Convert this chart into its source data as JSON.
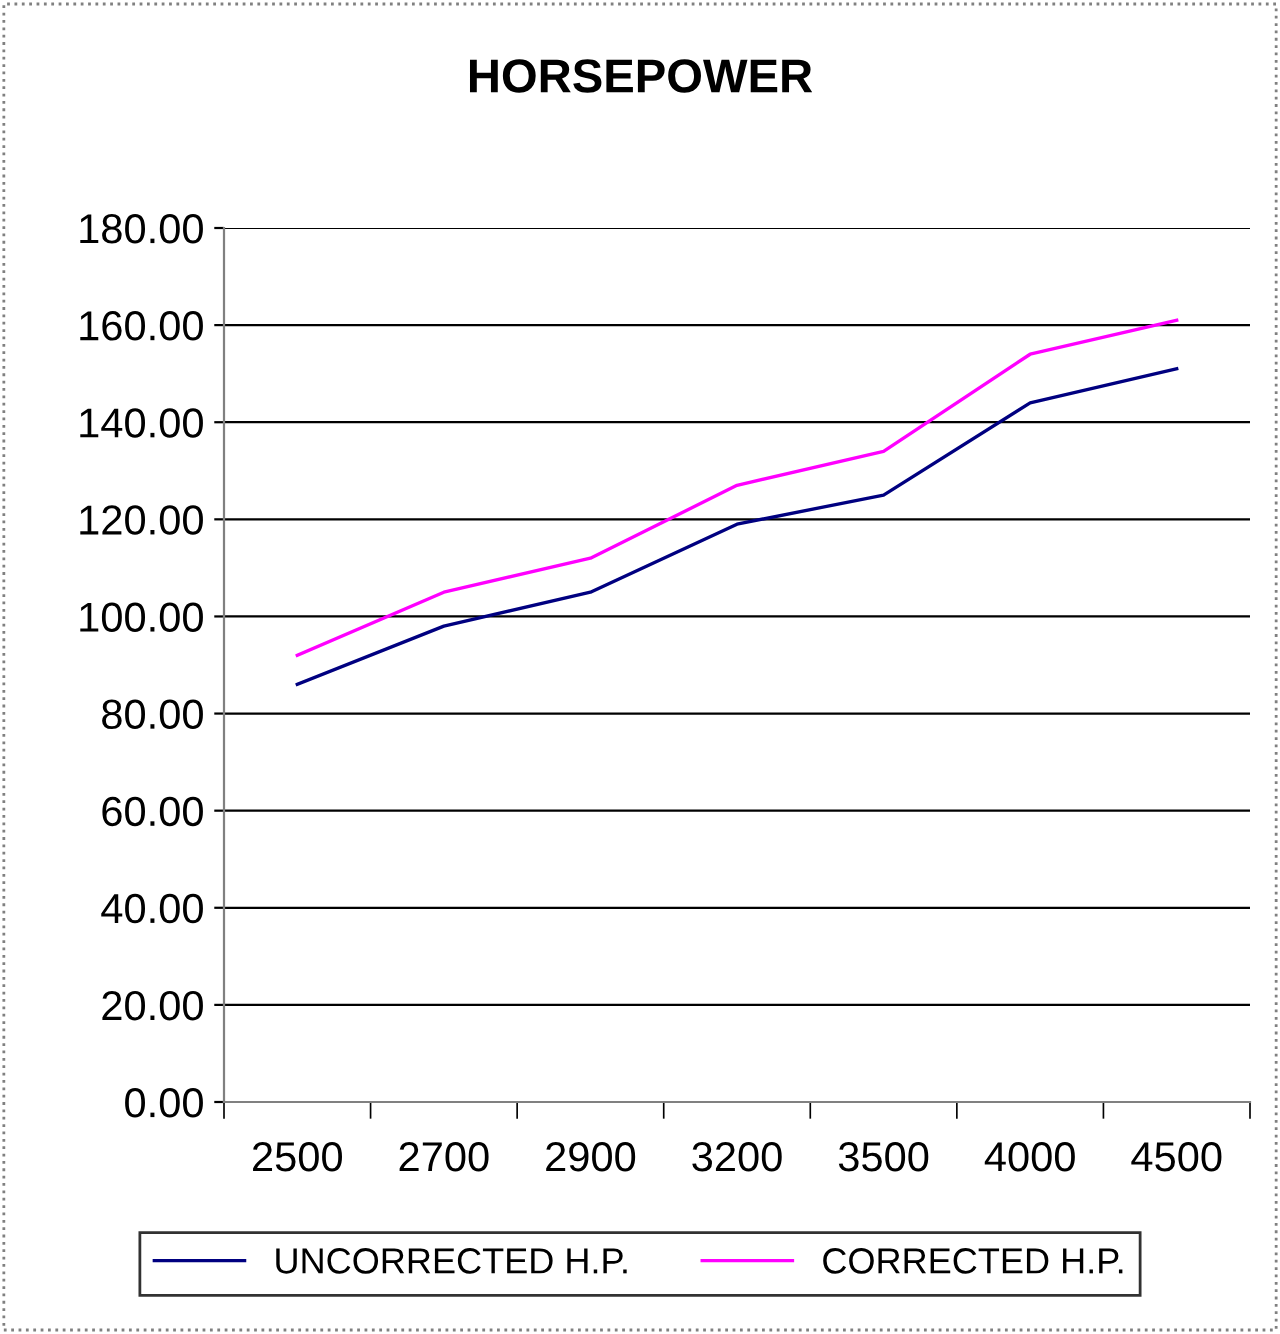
{
  "chart_data": {
    "type": "line",
    "title": "HORSEPOWER",
    "categories": [
      "2500",
      "2700",
      "2900",
      "3200",
      "3500",
      "4000",
      "4500"
    ],
    "series": [
      {
        "name": "UNCORRECTED H.P.",
        "color": "#000080",
        "values": [
          86,
          98,
          105,
          119,
          125,
          144,
          151
        ]
      },
      {
        "name": "CORRECTED H.P.",
        "color": "#ff00ff",
        "values": [
          92,
          105,
          112,
          127,
          134,
          154,
          161
        ]
      }
    ],
    "ylim": [
      0,
      180
    ],
    "yticks": [
      {
        "value": 0,
        "label": "0.00"
      },
      {
        "value": 20,
        "label": "20.00"
      },
      {
        "value": 40,
        "label": "40.00"
      },
      {
        "value": 60,
        "label": "60.00"
      },
      {
        "value": 80,
        "label": "80.00"
      },
      {
        "value": 100,
        "label": "100.00"
      },
      {
        "value": 120,
        "label": "120.00"
      },
      {
        "value": 140,
        "label": "140.00"
      },
      {
        "value": 160,
        "label": "160.00"
      },
      {
        "value": 180,
        "label": "180.00"
      }
    ],
    "grid": "y",
    "legend": "bottom",
    "marker": "none",
    "line_style": "solid"
  }
}
